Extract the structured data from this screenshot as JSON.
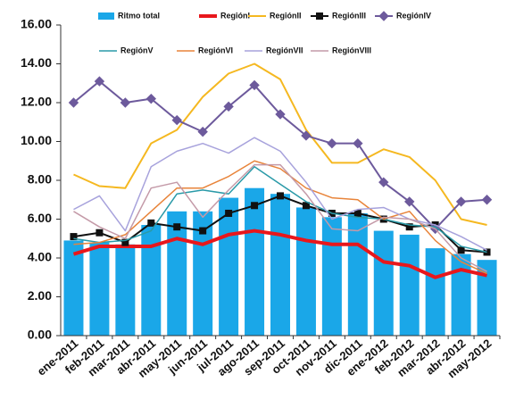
{
  "chart_data": {
    "type": "bar",
    "categories": [
      "ene-2011",
      "feb-2011",
      "mar-2011",
      "abr-2011",
      "may-2011",
      "jun-2011",
      "jul-2011",
      "ago-2011",
      "sep-2011",
      "oct-2011",
      "nov-2011",
      "dic-2011",
      "ene-2012",
      "feb-2012",
      "mar-2012",
      "abr-2012",
      "may-2012"
    ],
    "series": [
      {
        "name": "Ritmo total",
        "type": "bar",
        "color": "#1aa7e8",
        "values": [
          4.9,
          4.8,
          4.7,
          5.7,
          6.4,
          6.4,
          7.1,
          7.6,
          7.3,
          6.6,
          6.1,
          6.3,
          5.4,
          5.2,
          4.5,
          4.2,
          3.9
        ]
      },
      {
        "name": "RegiónI",
        "type": "line",
        "color": "#e8171c",
        "width": 4,
        "values": [
          4.2,
          4.6,
          4.6,
          4.6,
          5.0,
          4.7,
          5.2,
          5.4,
          5.2,
          4.9,
          4.7,
          4.7,
          3.8,
          3.6,
          3.0,
          3.4,
          3.1
        ]
      },
      {
        "name": "RegiónII",
        "type": "line",
        "color": "#f5b820",
        "width": 2,
        "values": [
          8.3,
          7.7,
          7.6,
          9.9,
          10.6,
          12.3,
          13.5,
          14.0,
          13.2,
          10.6,
          8.9,
          8.9,
          9.6,
          9.2,
          8.0,
          6.0,
          5.7
        ]
      },
      {
        "name": "RegiónIII",
        "type": "line",
        "color": "#111111",
        "width": 2,
        "marker": "square",
        "values": [
          5.1,
          5.3,
          4.8,
          5.8,
          5.6,
          5.4,
          6.3,
          6.7,
          7.2,
          6.7,
          6.3,
          6.3,
          6.0,
          5.6,
          5.7,
          4.4,
          4.3
        ]
      },
      {
        "name": "RegiónIV",
        "type": "line",
        "color": "#6d5a9c",
        "width": 2,
        "marker": "diamond",
        "values": [
          12.0,
          13.1,
          12.0,
          12.2,
          11.1,
          10.5,
          11.8,
          12.9,
          11.4,
          10.3,
          9.9,
          9.9,
          7.9,
          6.9,
          5.5,
          6.9,
          7.0
        ]
      },
      {
        "name": "RegiónV",
        "type": "line",
        "color": "#2a9aa8",
        "width": 1.5,
        "values": [
          5.0,
          4.8,
          4.9,
          5.4,
          7.3,
          7.5,
          7.3,
          8.7,
          7.8,
          6.9,
          6.3,
          6.1,
          6.0,
          5.7,
          5.6,
          4.6,
          4.3
        ]
      },
      {
        "name": "RegiónVI",
        "type": "line",
        "color": "#e8843a",
        "width": 1.5,
        "values": [
          4.7,
          4.8,
          5.2,
          6.4,
          7.6,
          7.6,
          8.2,
          9.0,
          8.6,
          7.6,
          7.1,
          7.0,
          6.0,
          6.4,
          4.9,
          3.8,
          3.2
        ]
      },
      {
        "name": "RegiónVII",
        "type": "line",
        "color": "#a7a2dc",
        "width": 1.5,
        "values": [
          6.5,
          7.2,
          5.4,
          8.7,
          9.5,
          9.9,
          9.4,
          10.2,
          9.5,
          7.9,
          6.0,
          6.5,
          6.6,
          6.0,
          5.7,
          5.1,
          4.4
        ]
      },
      {
        "name": "RegiónVIII",
        "type": "line",
        "color": "#c49aa8",
        "width": 1.5,
        "values": [
          6.4,
          5.6,
          5.0,
          7.6,
          7.9,
          6.1,
          7.5,
          8.8,
          8.8,
          7.3,
          5.5,
          5.4,
          6.1,
          6.0,
          5.5,
          4.0,
          3.3
        ]
      }
    ],
    "ylim": [
      0,
      16
    ],
    "yticks": [
      {
        "value": 0,
        "label": "0.00"
      },
      {
        "value": 2,
        "label": "2.00"
      },
      {
        "value": 4,
        "label": "4.00"
      },
      {
        "value": 6,
        "label": "6.00"
      },
      {
        "value": 8,
        "label": "8.00"
      },
      {
        "value": 10,
        "label": "10.00"
      },
      {
        "value": 12,
        "label": "12.00"
      },
      {
        "value": 14,
        "label": "14.00"
      },
      {
        "value": 16,
        "label": "16.00"
      }
    ],
    "grid": false
  }
}
